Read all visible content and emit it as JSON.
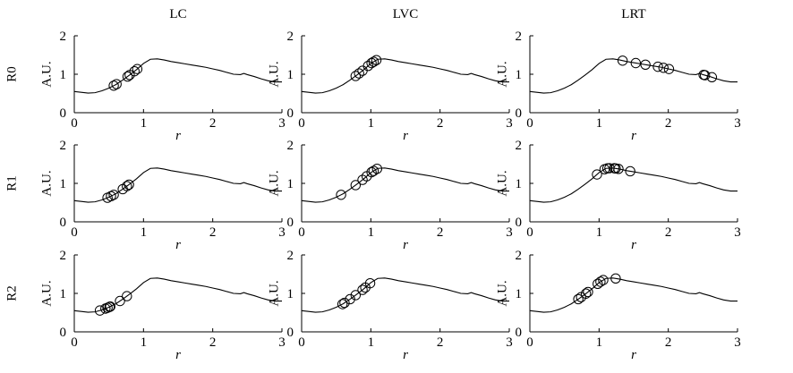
{
  "chart_data": {
    "type": "line",
    "layout": "3x3 grid of subplots",
    "columns": [
      "LC",
      "LVC",
      "LRT"
    ],
    "rows": [
      "R0",
      "R1",
      "R2"
    ],
    "ylabel": "A.U.",
    "xlabel": "r",
    "xlim": [
      0,
      3
    ],
    "ylim": [
      0,
      2
    ],
    "xticks": [
      "0",
      "1",
      "2",
      "3"
    ],
    "yticks": [
      "0",
      "1",
      "2"
    ],
    "grid": false,
    "curve": {
      "x": [
        0,
        0.1,
        0.2,
        0.3,
        0.4,
        0.5,
        0.6,
        0.7,
        0.8,
        0.9,
        1.0,
        1.1,
        1.2,
        1.3,
        1.4,
        1.5,
        1.6,
        1.7,
        1.8,
        1.9,
        2.0,
        2.1,
        2.2,
        2.3,
        2.4,
        2.45,
        2.5,
        2.6,
        2.7,
        2.8,
        2.9,
        3.0
      ],
      "y": [
        0.55,
        0.53,
        0.51,
        0.52,
        0.57,
        0.64,
        0.73,
        0.85,
        0.98,
        1.12,
        1.28,
        1.39,
        1.4,
        1.37,
        1.33,
        1.3,
        1.27,
        1.24,
        1.21,
        1.18,
        1.14,
        1.1,
        1.05,
        1.0,
        0.99,
        1.02,
        0.99,
        0.94,
        0.88,
        0.83,
        0.8,
        0.8
      ]
    },
    "markers": {
      "R0": {
        "LC": [
          0.57,
          0.61,
          0.77,
          0.8,
          0.87,
          0.91
        ],
        "LVC": [
          0.78,
          0.83,
          0.88,
          0.96,
          1.01,
          1.04,
          1.08
        ],
        "LRT": [
          1.34,
          1.53,
          1.67,
          1.85,
          1.93,
          2.01,
          2.51,
          2.53,
          2.63
        ]
      },
      "R1": {
        "LC": [
          0.48,
          0.53,
          0.57,
          0.7,
          0.76,
          0.79
        ],
        "LVC": [
          0.57,
          0.78,
          0.88,
          0.94,
          1.01,
          1.04,
          1.09
        ],
        "LRT": [
          0.97,
          1.08,
          1.12,
          1.15,
          1.22,
          1.24,
          1.28,
          1.45
        ]
      },
      "R2": {
        "LC": [
          0.37,
          0.45,
          0.48,
          0.51,
          0.52,
          0.66,
          0.76
        ],
        "LVC": [
          0.59,
          0.62,
          0.7,
          0.78,
          0.88,
          0.92,
          0.99
        ],
        "LRT": [
          0.7,
          0.74,
          0.81,
          0.84,
          0.98,
          1.02,
          1.06,
          1.24
        ]
      }
    }
  }
}
